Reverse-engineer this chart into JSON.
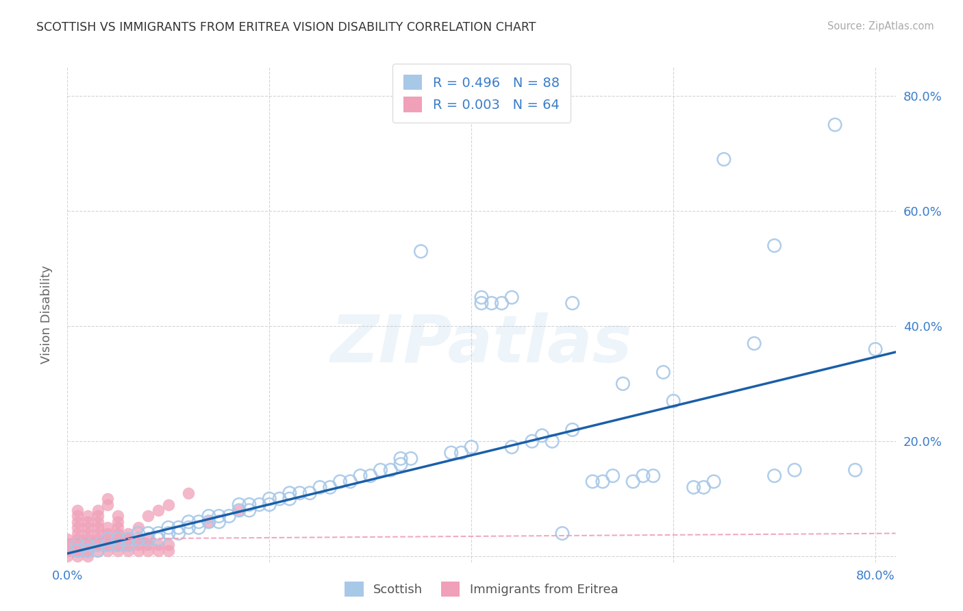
{
  "title": "SCOTTISH VS IMMIGRANTS FROM ERITREA VISION DISABILITY CORRELATION CHART",
  "source": "Source: ZipAtlas.com",
  "ylabel": "Vision Disability",
  "background_color": "#ffffff",
  "grid_color": "#d0d0d0",
  "watermark": "ZIPatlas",
  "scottish_color": "#a8c8e8",
  "eritrea_color": "#f0a0b8",
  "line_color": "#1a5fa8",
  "eritrea_line_color": "#f0a0b8",
  "xlim": [
    0.0,
    0.82
  ],
  "ylim": [
    -0.01,
    0.85
  ],
  "x_ticks": [
    0.0,
    0.2,
    0.4,
    0.6,
    0.8
  ],
  "x_tick_labels": [
    "0.0%",
    "",
    "",
    "",
    "80.0%"
  ],
  "y_ticks": [
    0.0,
    0.2,
    0.4,
    0.6,
    0.8
  ],
  "y_tick_labels_right": [
    "",
    "20.0%",
    "40.0%",
    "60.0%",
    "80.0%"
  ],
  "scottish_points": [
    [
      0.01,
      0.01
    ],
    [
      0.01,
      0.01
    ],
    [
      0.01,
      0.02
    ],
    [
      0.02,
      0.01
    ],
    [
      0.02,
      0.01
    ],
    [
      0.02,
      0.02
    ],
    [
      0.03,
      0.01
    ],
    [
      0.03,
      0.02
    ],
    [
      0.04,
      0.02
    ],
    [
      0.04,
      0.03
    ],
    [
      0.05,
      0.02
    ],
    [
      0.05,
      0.03
    ],
    [
      0.06,
      0.02
    ],
    [
      0.06,
      0.03
    ],
    [
      0.07,
      0.03
    ],
    [
      0.07,
      0.04
    ],
    [
      0.08,
      0.03
    ],
    [
      0.08,
      0.04
    ],
    [
      0.09,
      0.03
    ],
    [
      0.09,
      0.04
    ],
    [
      0.1,
      0.04
    ],
    [
      0.1,
      0.05
    ],
    [
      0.11,
      0.04
    ],
    [
      0.11,
      0.05
    ],
    [
      0.12,
      0.05
    ],
    [
      0.12,
      0.06
    ],
    [
      0.13,
      0.05
    ],
    [
      0.13,
      0.06
    ],
    [
      0.14,
      0.06
    ],
    [
      0.14,
      0.07
    ],
    [
      0.15,
      0.06
    ],
    [
      0.15,
      0.07
    ],
    [
      0.16,
      0.07
    ],
    [
      0.17,
      0.08
    ],
    [
      0.17,
      0.09
    ],
    [
      0.18,
      0.08
    ],
    [
      0.18,
      0.09
    ],
    [
      0.19,
      0.09
    ],
    [
      0.2,
      0.09
    ],
    [
      0.2,
      0.1
    ],
    [
      0.21,
      0.1
    ],
    [
      0.22,
      0.1
    ],
    [
      0.22,
      0.11
    ],
    [
      0.23,
      0.11
    ],
    [
      0.24,
      0.11
    ],
    [
      0.25,
      0.12
    ],
    [
      0.26,
      0.12
    ],
    [
      0.27,
      0.13
    ],
    [
      0.28,
      0.13
    ],
    [
      0.29,
      0.14
    ],
    [
      0.3,
      0.14
    ],
    [
      0.31,
      0.15
    ],
    [
      0.32,
      0.15
    ],
    [
      0.33,
      0.16
    ],
    [
      0.33,
      0.17
    ],
    [
      0.34,
      0.17
    ],
    [
      0.35,
      0.53
    ],
    [
      0.38,
      0.18
    ],
    [
      0.39,
      0.18
    ],
    [
      0.4,
      0.19
    ],
    [
      0.41,
      0.44
    ],
    [
      0.41,
      0.45
    ],
    [
      0.42,
      0.44
    ],
    [
      0.43,
      0.44
    ],
    [
      0.44,
      0.19
    ],
    [
      0.44,
      0.45
    ],
    [
      0.46,
      0.2
    ],
    [
      0.47,
      0.21
    ],
    [
      0.48,
      0.2
    ],
    [
      0.49,
      0.04
    ],
    [
      0.5,
      0.22
    ],
    [
      0.5,
      0.44
    ],
    [
      0.52,
      0.13
    ],
    [
      0.53,
      0.13
    ],
    [
      0.54,
      0.14
    ],
    [
      0.55,
      0.3
    ],
    [
      0.56,
      0.13
    ],
    [
      0.57,
      0.14
    ],
    [
      0.58,
      0.14
    ],
    [
      0.59,
      0.32
    ],
    [
      0.6,
      0.27
    ],
    [
      0.62,
      0.12
    ],
    [
      0.63,
      0.12
    ],
    [
      0.64,
      0.13
    ],
    [
      0.65,
      0.69
    ],
    [
      0.68,
      0.37
    ],
    [
      0.7,
      0.54
    ],
    [
      0.7,
      0.14
    ],
    [
      0.72,
      0.15
    ],
    [
      0.76,
      0.75
    ],
    [
      0.78,
      0.15
    ],
    [
      0.8,
      0.36
    ]
  ],
  "eritrea_points": [
    [
      0.0,
      0.0
    ],
    [
      0.0,
      0.01
    ],
    [
      0.0,
      0.02
    ],
    [
      0.0,
      0.03
    ],
    [
      0.01,
      0.0
    ],
    [
      0.01,
      0.01
    ],
    [
      0.01,
      0.02
    ],
    [
      0.01,
      0.03
    ],
    [
      0.01,
      0.04
    ],
    [
      0.01,
      0.05
    ],
    [
      0.01,
      0.06
    ],
    [
      0.01,
      0.07
    ],
    [
      0.01,
      0.08
    ],
    [
      0.02,
      0.0
    ],
    [
      0.02,
      0.01
    ],
    [
      0.02,
      0.02
    ],
    [
      0.02,
      0.03
    ],
    [
      0.02,
      0.04
    ],
    [
      0.02,
      0.05
    ],
    [
      0.02,
      0.06
    ],
    [
      0.02,
      0.07
    ],
    [
      0.03,
      0.01
    ],
    [
      0.03,
      0.02
    ],
    [
      0.03,
      0.03
    ],
    [
      0.03,
      0.04
    ],
    [
      0.03,
      0.05
    ],
    [
      0.03,
      0.06
    ],
    [
      0.03,
      0.07
    ],
    [
      0.03,
      0.08
    ],
    [
      0.04,
      0.01
    ],
    [
      0.04,
      0.02
    ],
    [
      0.04,
      0.03
    ],
    [
      0.04,
      0.04
    ],
    [
      0.04,
      0.05
    ],
    [
      0.04,
      0.09
    ],
    [
      0.04,
      0.1
    ],
    [
      0.05,
      0.01
    ],
    [
      0.05,
      0.02
    ],
    [
      0.05,
      0.03
    ],
    [
      0.05,
      0.04
    ],
    [
      0.05,
      0.05
    ],
    [
      0.05,
      0.06
    ],
    [
      0.05,
      0.07
    ],
    [
      0.06,
      0.01
    ],
    [
      0.06,
      0.02
    ],
    [
      0.06,
      0.03
    ],
    [
      0.06,
      0.04
    ],
    [
      0.07,
      0.01
    ],
    [
      0.07,
      0.02
    ],
    [
      0.07,
      0.03
    ],
    [
      0.07,
      0.05
    ],
    [
      0.08,
      0.01
    ],
    [
      0.08,
      0.02
    ],
    [
      0.08,
      0.03
    ],
    [
      0.08,
      0.07
    ],
    [
      0.09,
      0.01
    ],
    [
      0.09,
      0.02
    ],
    [
      0.09,
      0.08
    ],
    [
      0.1,
      0.01
    ],
    [
      0.1,
      0.02
    ],
    [
      0.1,
      0.09
    ],
    [
      0.12,
      0.11
    ],
    [
      0.14,
      0.06
    ],
    [
      0.17,
      0.08
    ]
  ],
  "scottish_reg_line": [
    [
      0.0,
      0.005
    ],
    [
      0.82,
      0.355
    ]
  ],
  "eritrea_reg_line": [
    [
      0.0,
      0.03
    ],
    [
      0.82,
      0.04
    ]
  ]
}
